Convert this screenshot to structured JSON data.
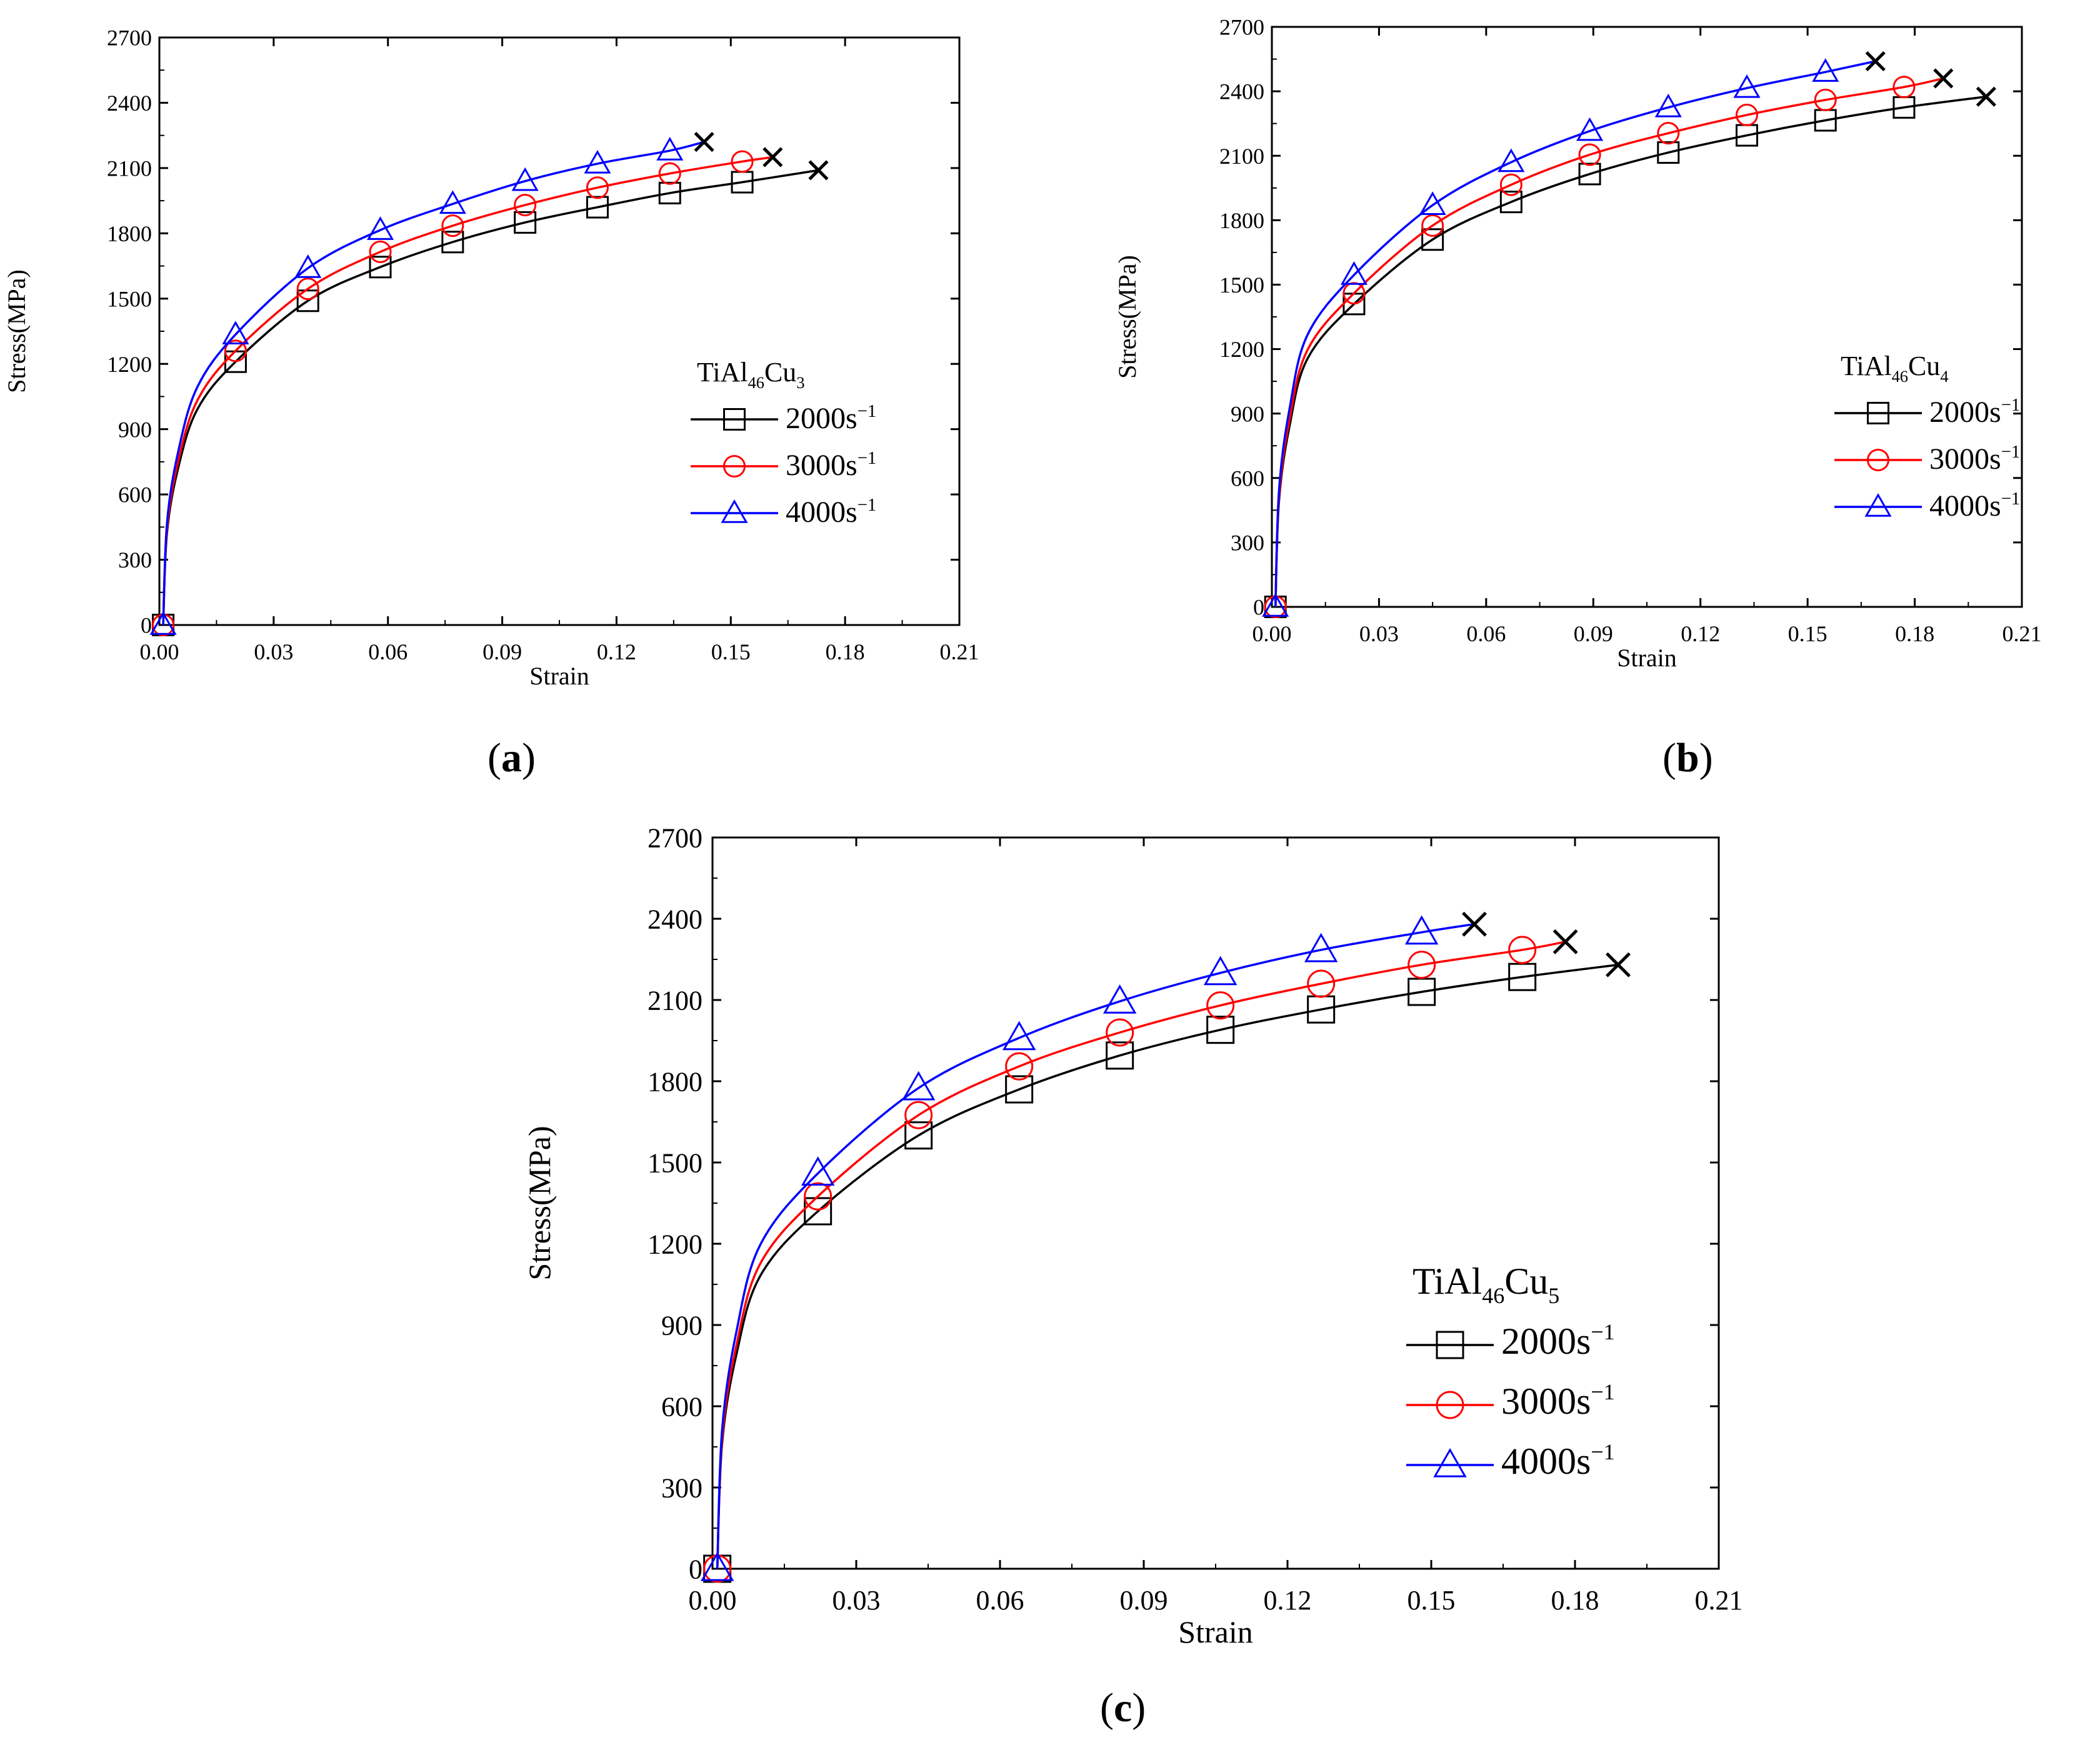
{
  "chart_data": [
    {
      "type": "line",
      "panel": "a",
      "title": "",
      "xlabel": "Strain",
      "ylabel": "Stress(MPa)",
      "xlim": [
        0,
        0.21
      ],
      "ylim": [
        0,
        2700
      ],
      "xticks": [
        "0.00",
        "0.03",
        "0.06",
        "0.09",
        "0.12",
        "0.15",
        "0.18",
        "0.21"
      ],
      "yticks": [
        "0",
        "300",
        "600",
        "900",
        "1200",
        "1500",
        "1800",
        "2100",
        "2400",
        "2700"
      ],
      "legend": {
        "title_base": "TiAl",
        "title_sub1": "46",
        "title_mid": "Cu",
        "title_sub2": "3",
        "placement": "right"
      },
      "series": [
        {
          "name": "2000s",
          "unit_sup": "−1",
          "color": "#000000",
          "marker": "square",
          "x": [
            0.001,
            0.02,
            0.039,
            0.058,
            0.077,
            0.096,
            0.115,
            0.134,
            0.153
          ],
          "y": [
            0,
            1210,
            1490,
            1645,
            1760,
            1850,
            1920,
            1985,
            2035
          ],
          "fracture": [
            0.173,
            2090
          ]
        },
        {
          "name": "3000s",
          "unit_sup": "−1",
          "color": "#ff0000",
          "marker": "circle",
          "x": [
            0.001,
            0.02,
            0.039,
            0.058,
            0.077,
            0.096,
            0.115,
            0.134,
            0.153
          ],
          "y": [
            0,
            1260,
            1545,
            1715,
            1835,
            1930,
            2010,
            2075,
            2130
          ],
          "fracture": [
            0.161,
            2150
          ]
        },
        {
          "name": "4000s",
          "unit_sup": "−1",
          "color": "#0000ff",
          "marker": "triangle",
          "x": [
            0.001,
            0.02,
            0.039,
            0.058,
            0.077,
            0.096,
            0.115,
            0.134
          ],
          "y": [
            0,
            1335,
            1640,
            1815,
            1935,
            2040,
            2120,
            2180
          ],
          "fracture": [
            0.143,
            2220
          ]
        }
      ]
    },
    {
      "type": "line",
      "panel": "b",
      "title": "",
      "xlabel": "Strain",
      "ylabel": "Stress(MPa)",
      "xlim": [
        0,
        0.21
      ],
      "ylim": [
        0,
        2700
      ],
      "xticks": [
        "0.00",
        "0.03",
        "0.06",
        "0.09",
        "0.12",
        "0.15",
        "0.18",
        "0.21"
      ],
      "yticks": [
        "0",
        "300",
        "600",
        "900",
        "1200",
        "1500",
        "1800",
        "2100",
        "2400",
        "2700"
      ],
      "legend": {
        "title_base": "TiAl",
        "title_sub1": "46",
        "title_mid": "Cu",
        "title_sub2": "4",
        "placement": "right"
      },
      "series": [
        {
          "name": "2000s",
          "unit_sup": "−1",
          "color": "#000000",
          "marker": "square",
          "x": [
            0.001,
            0.023,
            0.045,
            0.067,
            0.089,
            0.111,
            0.133,
            0.155,
            0.177
          ],
          "y": [
            0,
            1410,
            1710,
            1885,
            2015,
            2115,
            2195,
            2265,
            2325
          ],
          "fracture": [
            0.2,
            2375
          ]
        },
        {
          "name": "3000s",
          "unit_sup": "−1",
          "color": "#ff0000",
          "marker": "circle",
          "x": [
            0.001,
            0.023,
            0.045,
            0.067,
            0.089,
            0.111,
            0.133,
            0.155,
            0.177
          ],
          "y": [
            0,
            1460,
            1775,
            1965,
            2105,
            2205,
            2290,
            2360,
            2420
          ],
          "fracture": [
            0.188,
            2460
          ]
        },
        {
          "name": "4000s",
          "unit_sup": "−1",
          "color": "#0000ff",
          "marker": "triangle",
          "x": [
            0.001,
            0.023,
            0.045,
            0.067,
            0.089,
            0.111,
            0.133,
            0.155
          ],
          "y": [
            0,
            1545,
            1870,
            2070,
            2215,
            2325,
            2415,
            2490
          ],
          "fracture": [
            0.169,
            2540
          ]
        }
      ]
    },
    {
      "type": "line",
      "panel": "c",
      "title": "",
      "xlabel": "Strain",
      "ylabel": "Stress(MPa)",
      "xlim": [
        0,
        0.21
      ],
      "ylim": [
        0,
        2700
      ],
      "xticks": [
        "0.00",
        "0.03",
        "0.06",
        "0.09",
        "0.12",
        "0.15",
        "0.18",
        "0.21"
      ],
      "yticks": [
        "0",
        "300",
        "600",
        "900",
        "1200",
        "1500",
        "1800",
        "2100",
        "2400",
        "2700"
      ],
      "legend": {
        "title_base": "TiAl",
        "title_sub1": "46",
        "title_mid": "Cu",
        "title_sub2": "5",
        "placement": "right"
      },
      "series": [
        {
          "name": "2000s",
          "unit_sup": "−1",
          "color": "#000000",
          "marker": "square",
          "x": [
            0.001,
            0.022,
            0.043,
            0.064,
            0.085,
            0.106,
            0.127,
            0.148,
            0.169
          ],
          "y": [
            0,
            1320,
            1600,
            1770,
            1895,
            1990,
            2065,
            2130,
            2185
          ],
          "fracture": [
            0.189,
            2230
          ]
        },
        {
          "name": "3000s",
          "unit_sup": "−1",
          "color": "#ff0000",
          "marker": "circle",
          "x": [
            0.001,
            0.022,
            0.043,
            0.064,
            0.085,
            0.106,
            0.127,
            0.148,
            0.169
          ],
          "y": [
            0,
            1375,
            1675,
            1855,
            1980,
            2080,
            2160,
            2230,
            2285
          ],
          "fracture": [
            0.178,
            2315
          ]
        },
        {
          "name": "4000s",
          "unit_sup": "−1",
          "color": "#0000ff",
          "marker": "triangle",
          "x": [
            0.001,
            0.022,
            0.043,
            0.064,
            0.085,
            0.106,
            0.127,
            0.148
          ],
          "y": [
            0,
            1460,
            1775,
            1960,
            2095,
            2200,
            2285,
            2350
          ],
          "fracture": [
            0.159,
            2380
          ]
        }
      ]
    }
  ],
  "panel_labels": [
    "a",
    "b",
    "c"
  ]
}
